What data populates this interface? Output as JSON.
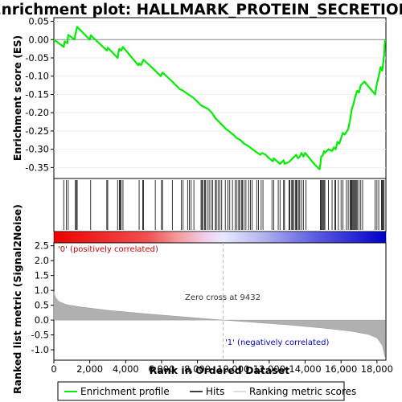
{
  "title": "Enrichment plot: HALLMARK_PROTEIN_SECRETION",
  "colors": {
    "es_line": "#00ee00",
    "hit": "#000000",
    "metric_fill": "#b0b0b0",
    "zero_cross": "#bbbbbb",
    "pos_label": "#cc0000",
    "neg_label": "#0000cc",
    "grid": "#eeeeee",
    "bar_red": "#ee0000",
    "bar_blue": "#0000cc"
  },
  "legend": [
    {
      "name": "enrichment-profile",
      "label": "Enrichment profile",
      "color": "#00ee00"
    },
    {
      "name": "hits",
      "label": "Hits",
      "color": "#000000"
    },
    {
      "name": "ranking-metric",
      "label": "Ranking metric scores",
      "color": "#bbbbbb"
    }
  ],
  "annotations": {
    "zero_cross": "Zero cross at 9432",
    "positive": "'0' (positively correlated)",
    "negative": "'1' (negatively correlated)"
  },
  "chart_data": {
    "type": "line",
    "n_genes": 18500,
    "zero_cross": 9432,
    "xlabel": "Rank in Ordered Dataset",
    "xlim": [
      0,
      18500
    ],
    "xticks": [
      0,
      2000,
      4000,
      6000,
      8000,
      10000,
      12000,
      14000,
      16000,
      18000
    ],
    "xtick_labels": [
      "0",
      "2,000",
      "4,000",
      "6,000",
      "8,000",
      "10,000",
      "12,000",
      "14,000",
      "16,000",
      "18,000"
    ],
    "es": {
      "ylabel": "Enrichment score (ES)",
      "ylim": [
        -0.38,
        0.06
      ],
      "yticks": [
        0.05,
        0.0,
        -0.05,
        -0.1,
        -0.15,
        -0.2,
        -0.25,
        -0.3,
        -0.35
      ],
      "ytick_labels": [
        "0.05",
        "0.00",
        "-0.05",
        "-0.10",
        "-0.15",
        "-0.20",
        "-0.25",
        "-0.30",
        "-0.35"
      ],
      "x": [
        0,
        550,
        600,
        750,
        800,
        1150,
        1200,
        1300,
        2000,
        2050,
        2950,
        3000,
        3550,
        3600,
        3650,
        3750,
        3850,
        4700,
        4750,
        4850,
        4950,
        5000,
        5100,
        5650,
        5950,
        6000,
        6050,
        6600,
        7000,
        7200,
        7500,
        7800,
        8000,
        8200,
        8400,
        8600,
        8800,
        9000,
        9300,
        9600,
        10000,
        10200,
        10400,
        10600,
        10800,
        11200,
        11500,
        11600,
        11800,
        12000,
        12200,
        12250,
        12600,
        12800,
        12850,
        13100,
        13300,
        13500,
        13600,
        13700,
        13800,
        13900,
        14000,
        14500,
        14800,
        14850,
        14900,
        15000,
        15050,
        15100,
        15300,
        15500,
        15600,
        15700,
        15800,
        15900,
        16000,
        16100,
        16200,
        16400,
        16500,
        16600,
        16700,
        16800,
        16900,
        17000,
        17100,
        17300,
        17900,
        18000,
        18100,
        18200,
        18300,
        18400,
        18450
      ],
      "y": [
        0.0,
        -0.02,
        -0.005,
        -0.01,
        0.013,
        0.0,
        0.015,
        0.035,
        0.0,
        0.012,
        -0.03,
        -0.022,
        -0.05,
        -0.035,
        -0.025,
        -0.03,
        -0.02,
        -0.07,
        -0.065,
        -0.07,
        -0.06,
        -0.055,
        -0.06,
        -0.085,
        -0.1,
        -0.095,
        -0.09,
        -0.115,
        -0.135,
        -0.14,
        -0.15,
        -0.16,
        -0.17,
        -0.18,
        -0.185,
        -0.19,
        -0.2,
        -0.215,
        -0.23,
        -0.245,
        -0.26,
        -0.27,
        -0.275,
        -0.285,
        -0.29,
        -0.305,
        -0.315,
        -0.31,
        -0.315,
        -0.325,
        -0.333,
        -0.325,
        -0.34,
        -0.33,
        -0.34,
        -0.335,
        -0.325,
        -0.315,
        -0.325,
        -0.32,
        -0.31,
        -0.32,
        -0.31,
        -0.34,
        -0.355,
        -0.34,
        -0.32,
        -0.315,
        -0.305,
        -0.31,
        -0.3,
        -0.305,
        -0.295,
        -0.3,
        -0.28,
        -0.285,
        -0.27,
        -0.255,
        -0.26,
        -0.245,
        -0.22,
        -0.19,
        -0.175,
        -0.155,
        -0.14,
        -0.145,
        -0.125,
        -0.115,
        -0.15,
        -0.12,
        -0.1,
        -0.075,
        -0.085,
        -0.04,
        0.0
      ]
    },
    "hits": [
      550,
      700,
      800,
      1200,
      1250,
      1300,
      2050,
      2950,
      3000,
      3550,
      3650,
      3700,
      3750,
      3850,
      4750,
      4950,
      5000,
      5650,
      6000,
      6050,
      6600,
      7100,
      7200,
      7450,
      7550,
      7650,
      7800,
      8200,
      8250,
      8300,
      8400,
      8450,
      8550,
      8650,
      8750,
      8850,
      9000,
      9050,
      9150,
      9250,
      9350,
      9550,
      9700,
      9800,
      9950,
      10100,
      10200,
      10300,
      10350,
      10450,
      10500,
      10600,
      10700,
      10850,
      10950,
      11050,
      11300,
      11400,
      11550,
      11650,
      12150,
      12250,
      12500,
      12600,
      12800,
      12850,
      13100,
      13150,
      13250,
      13300,
      13350,
      13450,
      13500,
      13550,
      13650,
      13700,
      13800,
      13900,
      14050,
      14850,
      14900,
      14950,
      15000,
      15050,
      15100,
      15300,
      15500,
      15650,
      15700,
      15850,
      16000,
      16100,
      16300,
      16400,
      16500,
      16550,
      16600,
      16650,
      16700,
      16750,
      16800,
      16850,
      16900,
      17000,
      17100,
      17200,
      17900,
      18000,
      18100,
      18250,
      18300,
      18350,
      18400
    ],
    "metric": {
      "ylabel": "Ranked list metric (Signal2Noise)",
      "ylim": [
        -1.35,
        2.6
      ],
      "yticks": [
        2.5,
        2.0,
        1.5,
        1.0,
        0.5,
        0.0,
        -0.5,
        -1.0
      ],
      "ytick_labels": [
        "2.5",
        "2.0",
        "1.5",
        "1.0",
        "0.5",
        "0.0",
        "-0.5",
        "-1.0"
      ],
      "x": [
        0,
        100,
        300,
        700,
        1500,
        3000,
        5000,
        7000,
        9432,
        11000,
        13000,
        15000,
        16500,
        17500,
        18000,
        18300,
        18450
      ],
      "y": [
        0.95,
        0.75,
        0.62,
        0.52,
        0.44,
        0.33,
        0.22,
        0.12,
        0.0,
        -0.07,
        -0.16,
        -0.27,
        -0.37,
        -0.48,
        -0.6,
        -0.85,
        -1.25
      ]
    }
  }
}
